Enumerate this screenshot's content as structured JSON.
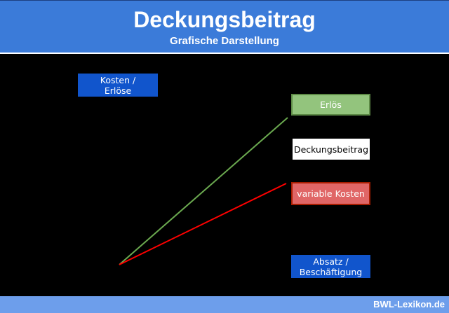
{
  "header": {
    "title": "Deckungsbeitrag",
    "subtitle": "Grafische Darstellung"
  },
  "labels": {
    "y_axis": "Kosten / Erlöse",
    "x_axis": "Absatz / Beschäftigung",
    "revenue": "Erlös",
    "margin": "Deckungsbeitrag",
    "variable_costs": "variable Kosten"
  },
  "colors": {
    "revenue": "#93c47d",
    "variable_costs": "#e06666",
    "revenue_line": "#6aa84f",
    "cost_line": "#ff0000",
    "header": "#3b7bd9",
    "footer": "#6d9eeb"
  },
  "footer": {
    "brand": "BWL-Lexikon.de"
  }
}
